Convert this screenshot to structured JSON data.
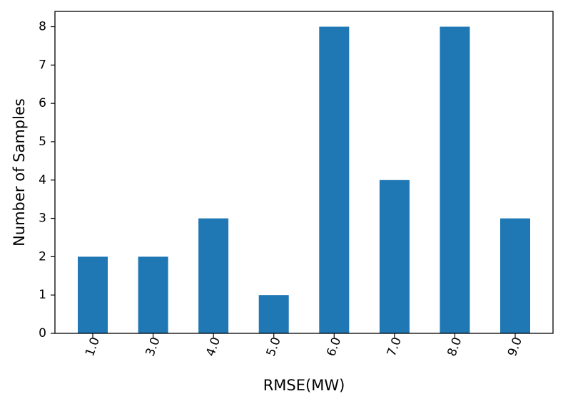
{
  "chart_data": {
    "type": "bar",
    "categories": [
      "1.0",
      "3.0",
      "4.0",
      "5.0",
      "6.0",
      "7.0",
      "8.0",
      "9.0"
    ],
    "values": [
      2,
      2,
      3,
      1,
      8,
      4,
      8,
      3
    ],
    "title": "",
    "xlabel": "RMSE(MW)",
    "ylabel": "Number of Samples",
    "ylim": [
      0,
      8.4
    ],
    "yticks": [
      "0",
      "1",
      "2",
      "3",
      "4",
      "5",
      "6",
      "7",
      "8"
    ],
    "bar_color": "#1f77b4",
    "grid": false,
    "xtick_rotation": -70
  }
}
